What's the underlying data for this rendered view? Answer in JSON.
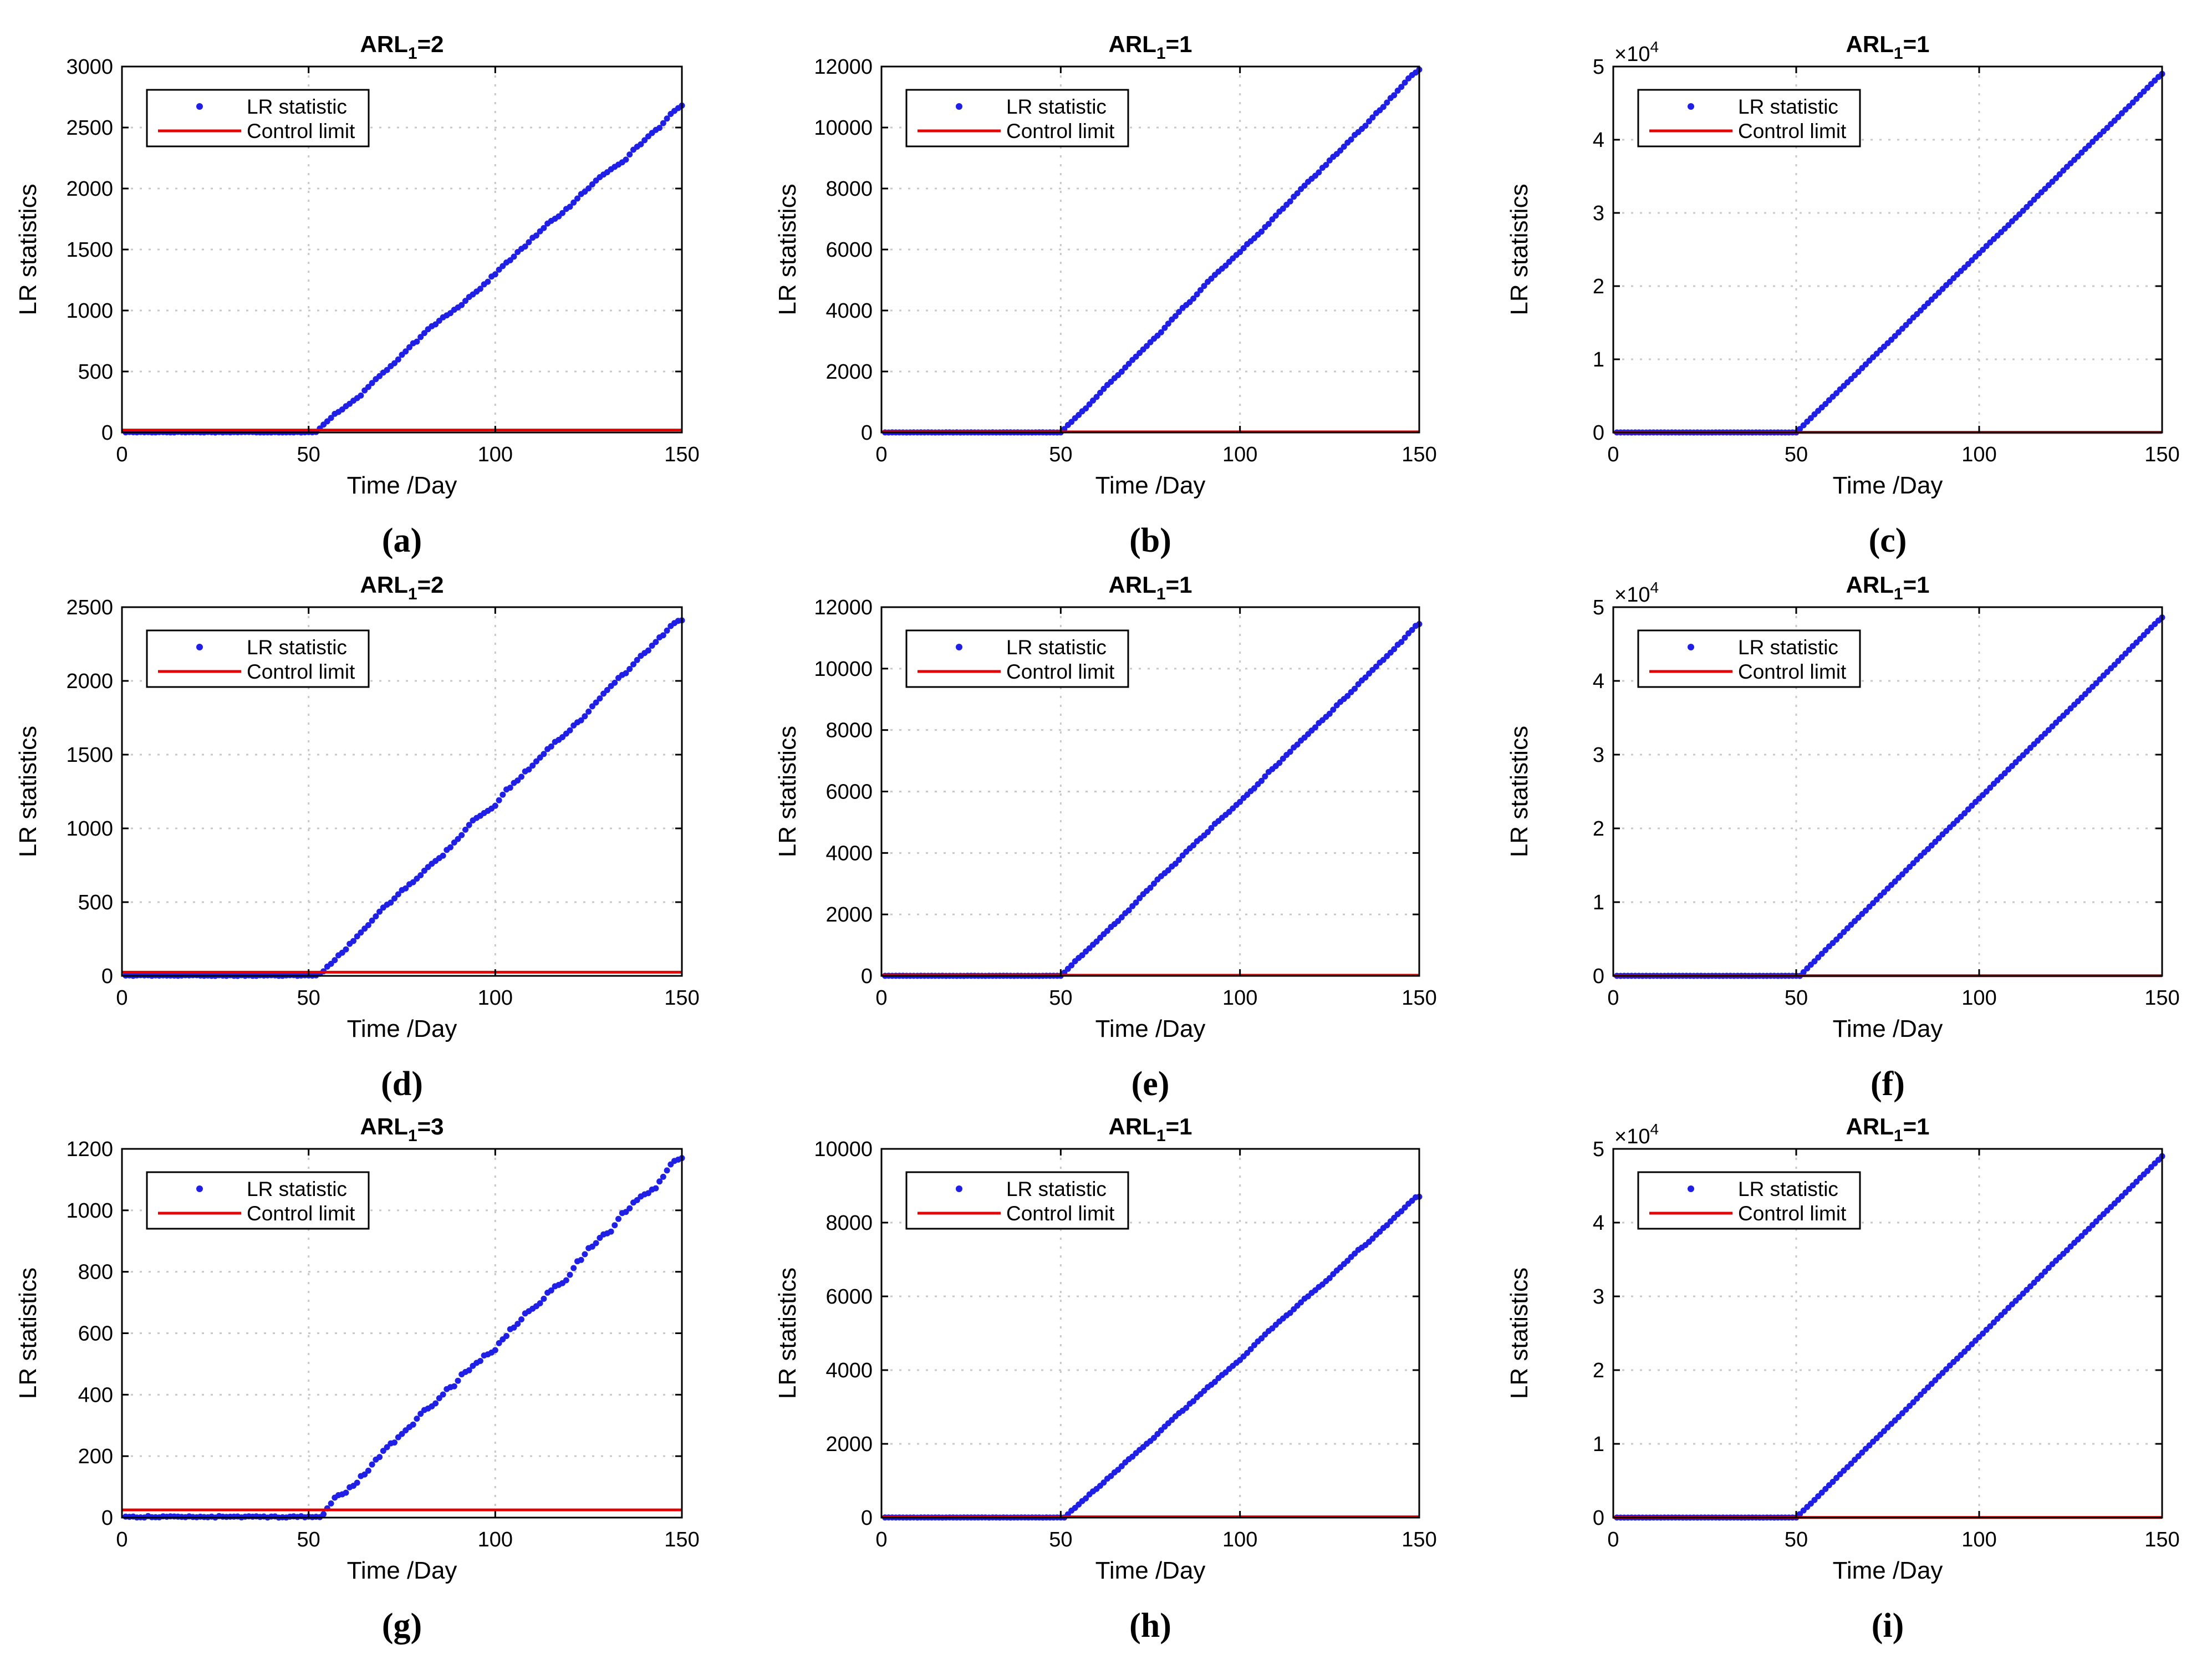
{
  "figure": {
    "x_label": "Time /Day",
    "y_label": "LR statistics"
  },
  "chart_data": [
    {
      "panel": "a",
      "caption": "(a)",
      "type": "scatter",
      "title_main": "ARL",
      "title_sub": "1",
      "title_tail": "=2",
      "xlabel": "Time /Day",
      "ylabel": "LR statistics",
      "xlim": [
        0,
        150
      ],
      "ylim": [
        0,
        3000
      ],
      "xticks": [
        0,
        50,
        100,
        150
      ],
      "yticks": [
        0,
        500,
        1000,
        1500,
        2000,
        2500,
        3000
      ],
      "ytick_labels": [
        "0",
        "500",
        "1000",
        "1500",
        "2000",
        "2500",
        "3000"
      ],
      "exponent_label": "",
      "exponent_power": "",
      "grid": true,
      "legend_position": "top-left",
      "change_point": 52,
      "final_value": 2680,
      "noise": 45,
      "pre_level": 5,
      "control_limit": 20,
      "series": [
        {
          "name": "LR statistic",
          "kind": "points",
          "color": "#1f1fe6",
          "x_range": [
            1,
            150
          ]
        },
        {
          "name": "Control limit",
          "kind": "line",
          "color": "#e60000",
          "value": 20
        }
      ]
    },
    {
      "panel": "b",
      "caption": "(b)",
      "type": "scatter",
      "title_main": "ARL",
      "title_sub": "1",
      "title_tail": "=1",
      "xlabel": "Time /Day",
      "ylabel": "LR statistics",
      "xlim": [
        0,
        150
      ],
      "ylim": [
        0,
        12000
      ],
      "xticks": [
        0,
        50,
        100,
        150
      ],
      "yticks": [
        0,
        2000,
        4000,
        6000,
        8000,
        10000,
        12000
      ],
      "ytick_labels": [
        "0",
        "2000",
        "4000",
        "6000",
        "8000",
        "10000",
        "12000"
      ],
      "exponent_label": "",
      "exponent_power": "",
      "grid": true,
      "legend_position": "top-left",
      "change_point": 50,
      "final_value": 11900,
      "noise": 110,
      "pre_level": 5,
      "control_limit": 20,
      "series": [
        {
          "name": "LR statistic",
          "kind": "points",
          "color": "#1f1fe6",
          "x_range": [
            1,
            150
          ]
        },
        {
          "name": "Control limit",
          "kind": "line",
          "color": "#e60000",
          "value": 20
        }
      ]
    },
    {
      "panel": "c",
      "caption": "(c)",
      "type": "scatter",
      "title_main": "ARL",
      "title_sub": "1",
      "title_tail": "=1",
      "xlabel": "Time /Day",
      "ylabel": "LR statistics",
      "xlim": [
        0,
        150
      ],
      "ylim": [
        0,
        50000
      ],
      "xticks": [
        0,
        50,
        100,
        150
      ],
      "yticks": [
        0,
        10000,
        20000,
        30000,
        40000,
        50000
      ],
      "ytick_labels": [
        "0",
        "1",
        "2",
        "3",
        "4",
        "5"
      ],
      "exponent_label": "×10",
      "exponent_power": "4",
      "grid": true,
      "legend_position": "top-left",
      "change_point": 50,
      "final_value": 49000,
      "noise": 120,
      "pre_level": 10,
      "control_limit": 20,
      "series": [
        {
          "name": "LR statistic",
          "kind": "points",
          "color": "#1f1fe6",
          "x_range": [
            1,
            150
          ]
        },
        {
          "name": "Control limit",
          "kind": "line",
          "color": "#e60000",
          "value": 20
        }
      ]
    },
    {
      "panel": "d",
      "caption": "(d)",
      "type": "scatter",
      "title_main": "ARL",
      "title_sub": "1",
      "title_tail": "=2",
      "xlabel": "Time /Day",
      "ylabel": "LR statistics",
      "xlim": [
        0,
        150
      ],
      "ylim": [
        0,
        2500
      ],
      "xticks": [
        0,
        50,
        100,
        150
      ],
      "yticks": [
        0,
        500,
        1000,
        1500,
        2000,
        2500
      ],
      "ytick_labels": [
        "0",
        "500",
        "1000",
        "1500",
        "2000",
        "2500"
      ],
      "exponent_label": "",
      "exponent_power": "",
      "grid": true,
      "legend_position": "top-left",
      "change_point": 52,
      "final_value": 2410,
      "noise": 45,
      "pre_level": 5,
      "control_limit": 25,
      "series": [
        {
          "name": "LR statistic",
          "kind": "points",
          "color": "#1f1fe6",
          "x_range": [
            1,
            150
          ]
        },
        {
          "name": "Control limit",
          "kind": "line",
          "color": "#e60000",
          "value": 25
        }
      ]
    },
    {
      "panel": "e",
      "caption": "(e)",
      "type": "scatter",
      "title_main": "ARL",
      "title_sub": "1",
      "title_tail": "=1",
      "xlabel": "Time /Day",
      "ylabel": "LR statistics",
      "xlim": [
        0,
        150
      ],
      "ylim": [
        0,
        12000
      ],
      "xticks": [
        0,
        50,
        100,
        150
      ],
      "yticks": [
        0,
        2000,
        4000,
        6000,
        8000,
        10000,
        12000
      ],
      "ytick_labels": [
        "0",
        "2000",
        "4000",
        "6000",
        "8000",
        "10000",
        "12000"
      ],
      "exponent_label": "",
      "exponent_power": "",
      "grid": true,
      "legend_position": "top-left",
      "change_point": 50,
      "final_value": 11450,
      "noise": 110,
      "pre_level": 5,
      "control_limit": 20,
      "series": [
        {
          "name": "LR statistic",
          "kind": "points",
          "color": "#1f1fe6",
          "x_range": [
            1,
            150
          ]
        },
        {
          "name": "Control limit",
          "kind": "line",
          "color": "#e60000",
          "value": 20
        }
      ]
    },
    {
      "panel": "f",
      "caption": "(f)",
      "type": "scatter",
      "title_main": "ARL",
      "title_sub": "1",
      "title_tail": "=1",
      "xlabel": "Time /Day",
      "ylabel": "LR statistics",
      "xlim": [
        0,
        150
      ],
      "ylim": [
        0,
        50000
      ],
      "xticks": [
        0,
        50,
        100,
        150
      ],
      "yticks": [
        0,
        10000,
        20000,
        30000,
        40000,
        50000
      ],
      "ytick_labels": [
        "0",
        "1",
        "2",
        "3",
        "4",
        "5"
      ],
      "exponent_label": "×10",
      "exponent_power": "4",
      "grid": true,
      "legend_position": "top-left",
      "change_point": 51,
      "final_value": 48600,
      "noise": 120,
      "pre_level": 10,
      "control_limit": 20,
      "series": [
        {
          "name": "LR statistic",
          "kind": "points",
          "color": "#1f1fe6",
          "x_range": [
            1,
            150
          ]
        },
        {
          "name": "Control limit",
          "kind": "line",
          "color": "#e60000",
          "value": 20
        }
      ]
    },
    {
      "panel": "g",
      "caption": "(g)",
      "type": "scatter",
      "title_main": "ARL",
      "title_sub": "1",
      "title_tail": "=3",
      "xlabel": "Time /Day",
      "ylabel": "LR statistics",
      "xlim": [
        0,
        150
      ],
      "ylim": [
        0,
        1200
      ],
      "xticks": [
        0,
        50,
        100,
        150
      ],
      "yticks": [
        0,
        200,
        400,
        600,
        800,
        1000,
        1200
      ],
      "ytick_labels": [
        "0",
        "200",
        "400",
        "600",
        "800",
        "1000",
        "1200"
      ],
      "exponent_label": "",
      "exponent_power": "",
      "grid": true,
      "legend_position": "top-left",
      "change_point": 53,
      "final_value": 1170,
      "noise": 35,
      "pre_level": 5,
      "control_limit": 25,
      "series": [
        {
          "name": "LR statistic",
          "kind": "points",
          "color": "#1f1fe6",
          "x_range": [
            1,
            150
          ]
        },
        {
          "name": "Control limit",
          "kind": "line",
          "color": "#e60000",
          "value": 25
        }
      ]
    },
    {
      "panel": "h",
      "caption": "(h)",
      "type": "scatter",
      "title_main": "ARL",
      "title_sub": "1",
      "title_tail": "=1",
      "xlabel": "Time /Day",
      "ylabel": "LR statistics",
      "xlim": [
        0,
        150
      ],
      "ylim": [
        0,
        10000
      ],
      "xticks": [
        0,
        50,
        100,
        150
      ],
      "yticks": [
        0,
        2000,
        4000,
        6000,
        8000,
        10000
      ],
      "ytick_labels": [
        "0",
        "2000",
        "4000",
        "6000",
        "8000",
        "10000"
      ],
      "exponent_label": "",
      "exponent_power": "",
      "grid": true,
      "legend_position": "top-left",
      "change_point": 51,
      "final_value": 8700,
      "noise": 90,
      "pre_level": 5,
      "control_limit": 20,
      "series": [
        {
          "name": "LR statistic",
          "kind": "points",
          "color": "#1f1fe6",
          "x_range": [
            1,
            150
          ]
        },
        {
          "name": "Control limit",
          "kind": "line",
          "color": "#e60000",
          "value": 20
        }
      ]
    },
    {
      "panel": "i",
      "caption": "(i)",
      "type": "scatter",
      "title_main": "ARL",
      "title_sub": "1",
      "title_tail": "=1",
      "xlabel": "Time /Day",
      "ylabel": "LR statistics",
      "xlim": [
        0,
        150
      ],
      "ylim": [
        0,
        50000
      ],
      "xticks": [
        0,
        50,
        100,
        150
      ],
      "yticks": [
        0,
        10000,
        20000,
        30000,
        40000,
        50000
      ],
      "ytick_labels": [
        "0",
        "1",
        "2",
        "3",
        "4",
        "5"
      ],
      "exponent_label": "×10",
      "exponent_power": "4",
      "grid": true,
      "legend_position": "top-left",
      "change_point": 50,
      "final_value": 49000,
      "noise": 120,
      "pre_level": 10,
      "control_limit": 20,
      "series": [
        {
          "name": "LR statistic",
          "kind": "points",
          "color": "#1f1fe6",
          "x_range": [
            1,
            150
          ]
        },
        {
          "name": "Control limit",
          "kind": "line",
          "color": "#e60000",
          "value": 20
        }
      ]
    }
  ]
}
